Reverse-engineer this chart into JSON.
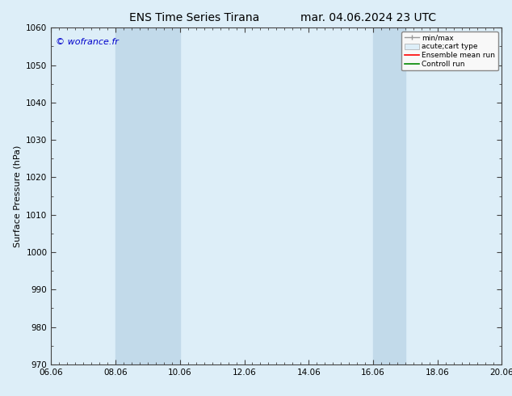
{
  "title_left": "ENS Time Series Tirana",
  "title_right": "mar. 04.06.2024 23 UTC",
  "ylabel": "Surface Pressure (hPa)",
  "ylim": [
    970,
    1060
  ],
  "yticks": [
    970,
    980,
    990,
    1000,
    1010,
    1020,
    1030,
    1040,
    1050,
    1060
  ],
  "xlim": [
    0,
    14
  ],
  "xtick_labels": [
    "06.06",
    "08.06",
    "10.06",
    "12.06",
    "14.06",
    "16.06",
    "18.06",
    "20.06"
  ],
  "xtick_positions": [
    0,
    2,
    4,
    6,
    8,
    10,
    12,
    14
  ],
  "background_color": "#ddeef8",
  "plot_bg_color": "#ddeef8",
  "watermark": "© wofrance.fr",
  "shaded_bands": [
    {
      "xmin": 2,
      "xmax": 4,
      "color": "#c2daea"
    },
    {
      "xmin": 10,
      "xmax": 11,
      "color": "#c2daea"
    }
  ],
  "legend_items": [
    {
      "label": "min/max",
      "color": "#aaaaaa",
      "style": "line_with_caps"
    },
    {
      "label": "acute;cart type",
      "color": "#ddeef8",
      "style": "filled_rect"
    },
    {
      "label": "Ensemble mean run",
      "color": "#ff0000",
      "style": "line"
    },
    {
      "label": "Controll run",
      "color": "#008800",
      "style": "line"
    }
  ],
  "title_fontsize": 10,
  "axis_fontsize": 8,
  "tick_fontsize": 7.5,
  "watermark_color": "#0000cc",
  "spine_color": "#444444"
}
